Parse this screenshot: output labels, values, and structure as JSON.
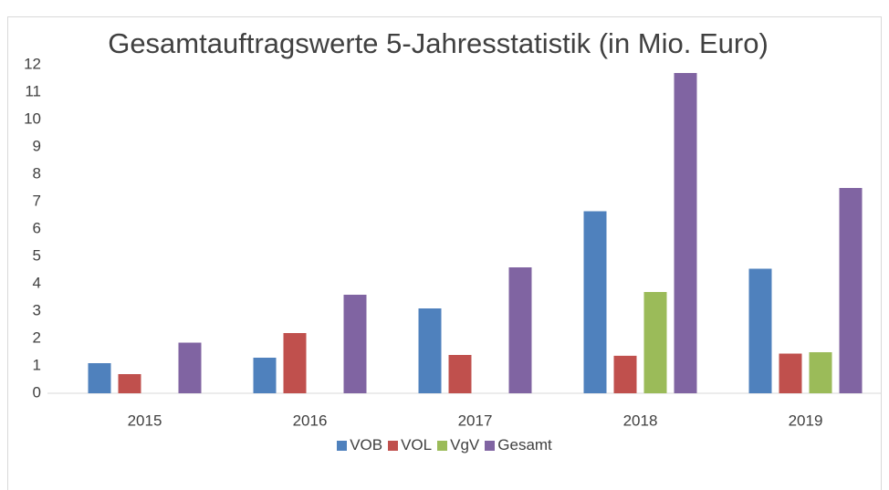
{
  "chart_data": {
    "type": "bar",
    "title": "Gesamtauftragswerte 5-Jahresstatistik (in Mio. Euro)",
    "categories": [
      "2015",
      "2016",
      "2017",
      "2018",
      "2019"
    ],
    "series": [
      {
        "name": "VOB",
        "color": "#4f81bd",
        "values": [
          1.1,
          1.3,
          3.1,
          6.65,
          4.55
        ]
      },
      {
        "name": "VOL",
        "color": "#c0504d",
        "values": [
          0.7,
          2.2,
          1.4,
          1.37,
          1.45
        ]
      },
      {
        "name": "VgV",
        "color": "#9bbb59",
        "values": [
          null,
          null,
          null,
          3.7,
          1.5
        ]
      },
      {
        "name": "Gesamt",
        "color": "#8064a2",
        "values": [
          1.85,
          3.6,
          4.6,
          11.7,
          7.5
        ]
      }
    ],
    "ylim": [
      0,
      12
    ],
    "yticks": [
      0,
      1,
      2,
      3,
      4,
      5,
      6,
      7,
      8,
      9,
      10,
      11,
      12
    ],
    "grid": false,
    "legend": "bottom"
  }
}
